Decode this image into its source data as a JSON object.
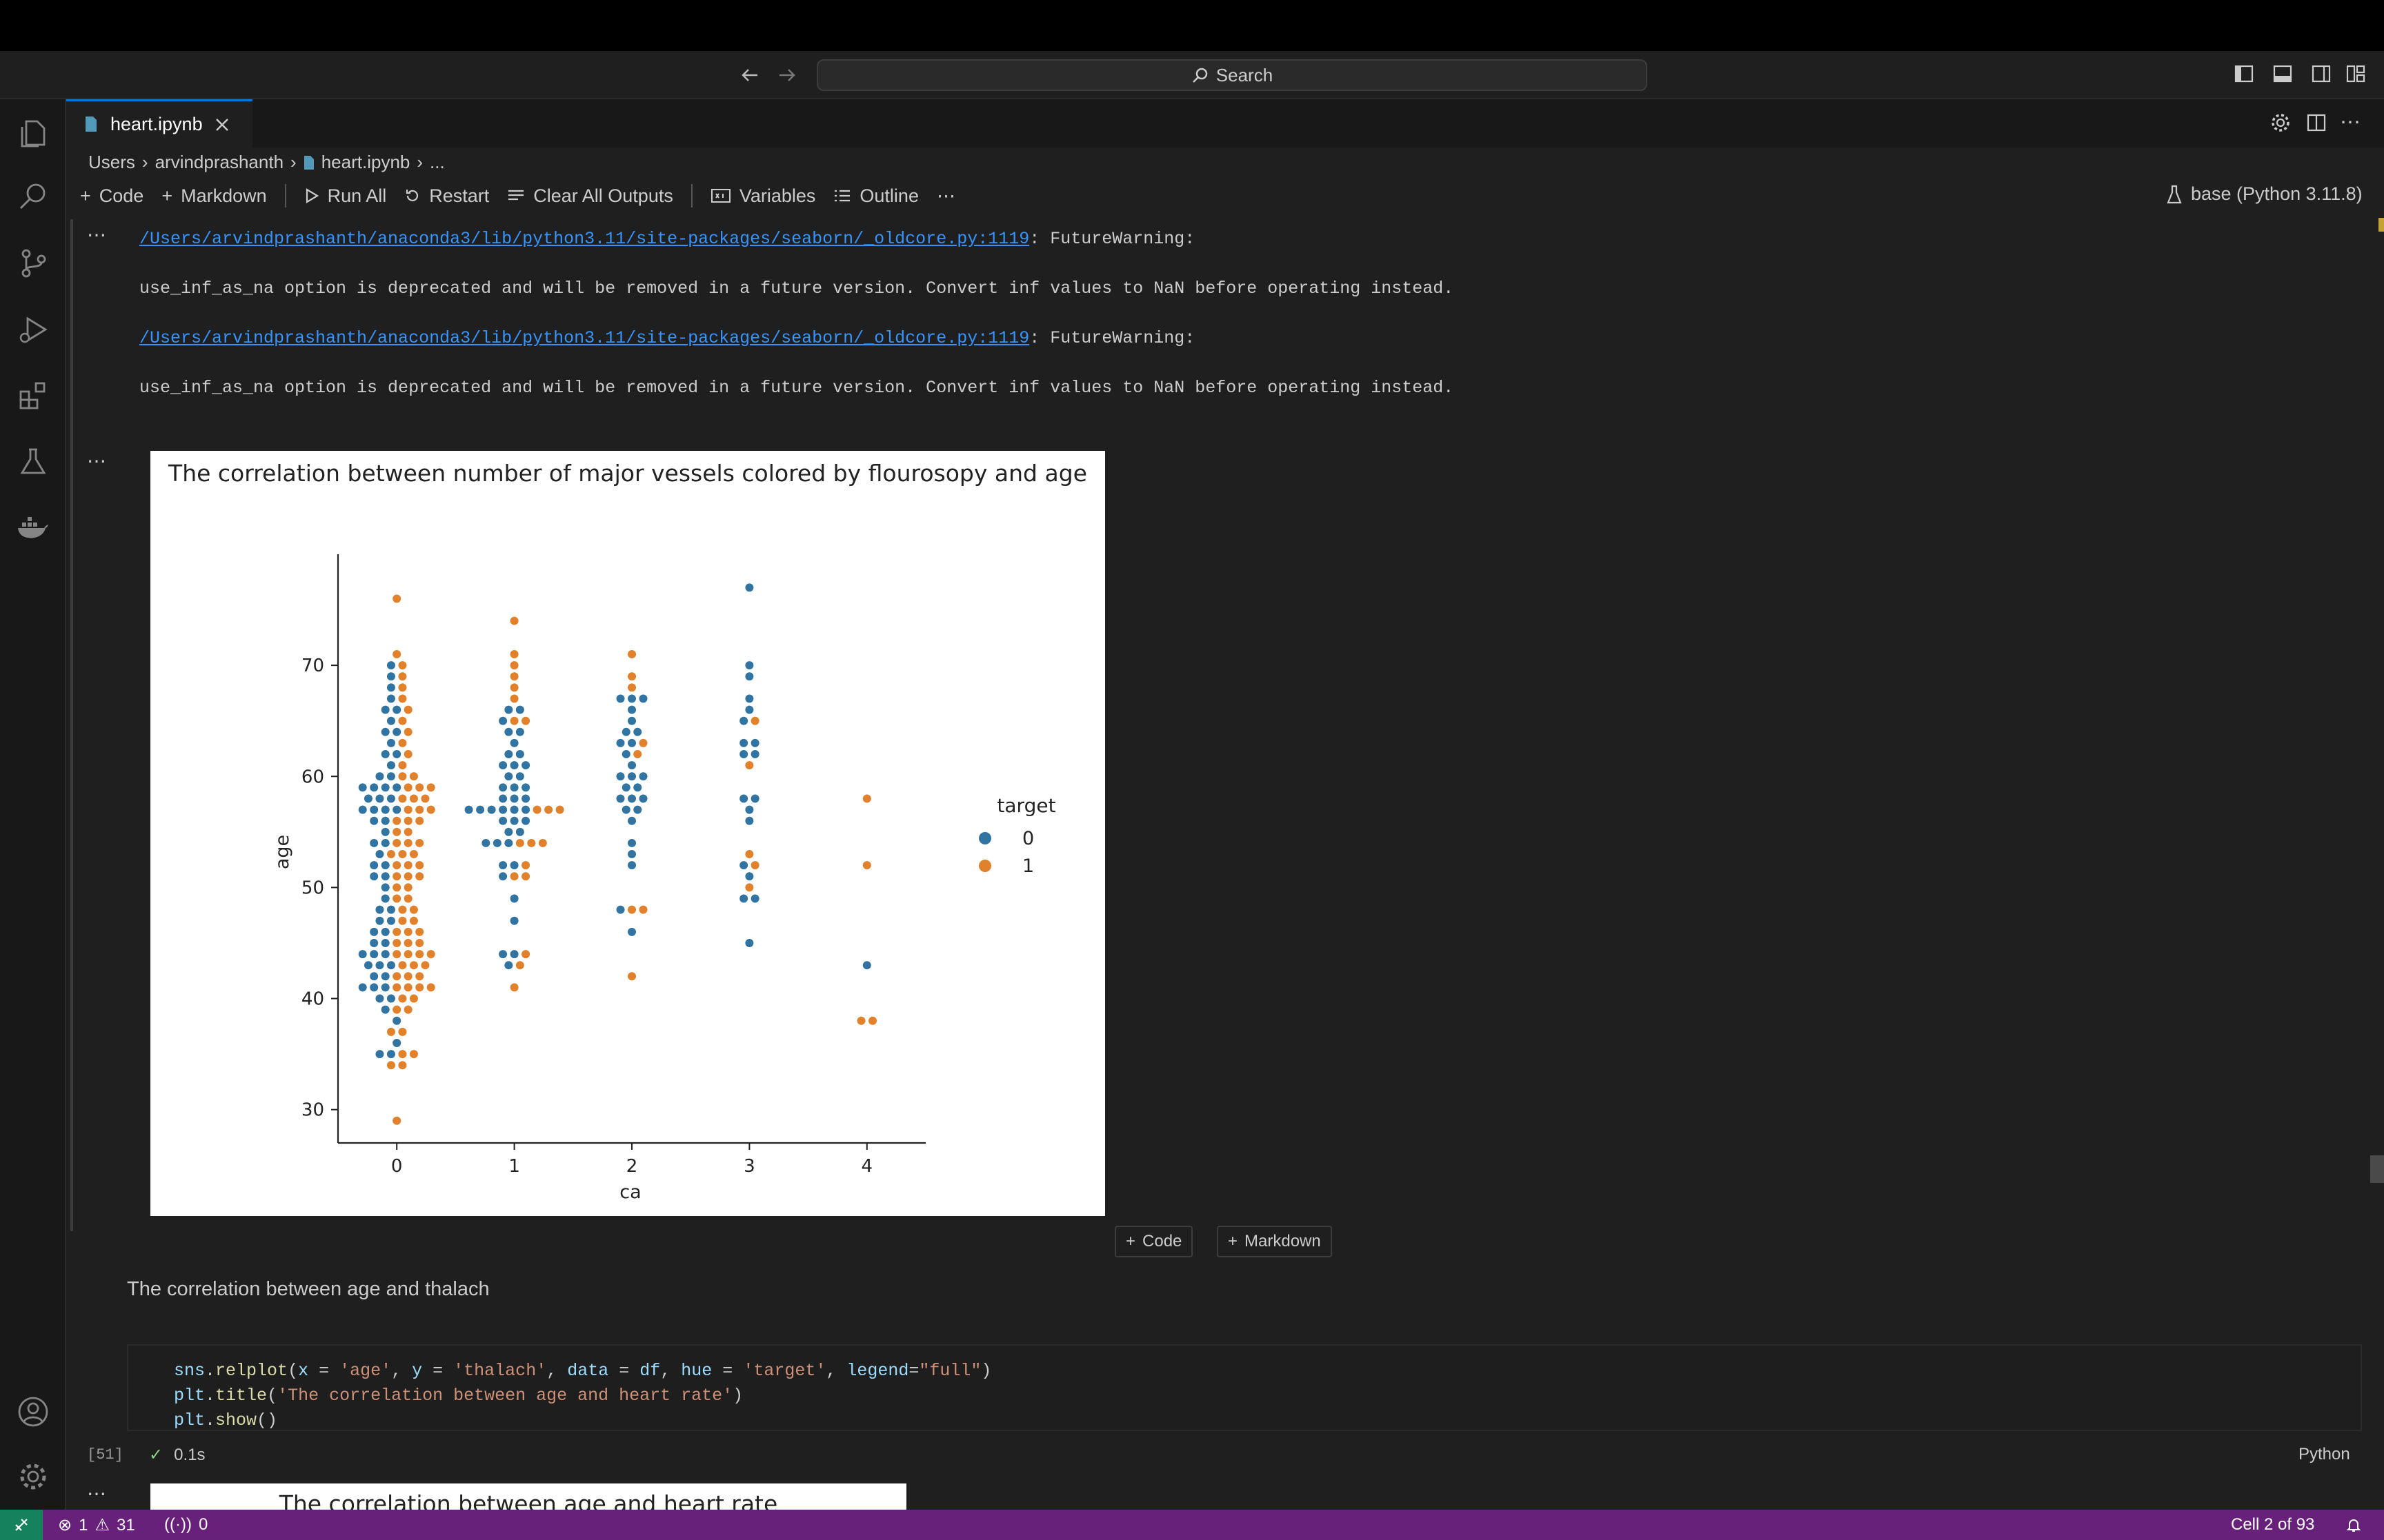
{
  "search": {
    "label": "Search"
  },
  "tab": {
    "title": "heart.ipynb"
  },
  "breadcrumb": {
    "user_root": "Users",
    "user": "arvindprashanth",
    "file": "heart.ipynb",
    "more": "..."
  },
  "toolbar": {
    "code": "Code",
    "markdown": "Markdown",
    "run_all": "Run All",
    "restart": "Restart",
    "clear_outputs": "Clear All Outputs",
    "variables": "Variables",
    "outline": "Outline",
    "more": "⋯",
    "kernel": "base (Python 3.11.8)"
  },
  "output1": {
    "ellipsis": "⋯",
    "warn1_path": "/Users/arvindprashanth/anaconda3/lib/python3.11/site-packages/seaborn/_oldcore.py:1119",
    "warn1_tail": ": FutureWarning:",
    "warn1_msg": "use_inf_as_na option is deprecated and will be removed in a future version. Convert inf values to NaN before operating instead.",
    "warn2_path": "/Users/arvindprashanth/anaconda3/lib/python3.11/site-packages/seaborn/_oldcore.py:1119",
    "warn2_tail": ": FutureWarning:",
    "warn2_msg": "use_inf_as_na option is deprecated and will be removed in a future version. Convert inf values to NaN before operating instead."
  },
  "output2": {
    "ellipsis": "⋯"
  },
  "chart_data": {
    "type": "scatter",
    "title": "The correlation between number of major vessels colored by flourosopy and age",
    "xlabel": "ca",
    "ylabel": "age",
    "categories": [
      "0",
      "1",
      "2",
      "3",
      "4"
    ],
    "yticks": [
      30,
      40,
      50,
      60,
      70
    ],
    "ylim": [
      27,
      80
    ],
    "legend_title": "target",
    "colors": {
      "0": "#3274a1",
      "1": "#e1812c"
    },
    "grid": false,
    "legend_position": "right",
    "series": [
      {
        "name": "0",
        "points": [
          [
            0,
            35
          ],
          [
            0,
            35
          ],
          [
            0,
            36
          ],
          [
            0,
            38
          ],
          [
            0,
            39
          ],
          [
            0,
            40
          ],
          [
            0,
            40
          ],
          [
            0,
            41
          ],
          [
            0,
            41
          ],
          [
            0,
            41
          ],
          [
            0,
            42
          ],
          [
            0,
            42
          ],
          [
            0,
            43
          ],
          [
            0,
            43
          ],
          [
            0,
            43
          ],
          [
            0,
            44
          ],
          [
            0,
            44
          ],
          [
            0,
            44
          ],
          [
            0,
            45
          ],
          [
            0,
            45
          ],
          [
            0,
            46
          ],
          [
            0,
            46
          ],
          [
            0,
            47
          ],
          [
            0,
            47
          ],
          [
            0,
            48
          ],
          [
            0,
            48
          ],
          [
            0,
            49
          ],
          [
            0,
            50
          ],
          [
            0,
            51
          ],
          [
            0,
            51
          ],
          [
            0,
            52
          ],
          [
            0,
            52
          ],
          [
            0,
            53
          ],
          [
            0,
            54
          ],
          [
            0,
            54
          ],
          [
            0,
            55
          ],
          [
            0,
            56
          ],
          [
            0,
            56
          ],
          [
            0,
            57
          ],
          [
            0,
            57
          ],
          [
            0,
            57
          ],
          [
            0,
            57
          ],
          [
            0,
            58
          ],
          [
            0,
            58
          ],
          [
            0,
            58
          ],
          [
            0,
            59
          ],
          [
            0,
            59
          ],
          [
            0,
            59
          ],
          [
            0,
            59
          ],
          [
            0,
            60
          ],
          [
            0,
            60
          ],
          [
            0,
            61
          ],
          [
            0,
            62
          ],
          [
            0,
            62
          ],
          [
            0,
            63
          ],
          [
            0,
            64
          ],
          [
            0,
            64
          ],
          [
            0,
            65
          ],
          [
            0,
            66
          ],
          [
            0,
            66
          ],
          [
            0,
            67
          ],
          [
            0,
            68
          ],
          [
            0,
            69
          ],
          [
            0,
            70
          ],
          [
            1,
            43
          ],
          [
            1,
            44
          ],
          [
            1,
            44
          ],
          [
            1,
            47
          ],
          [
            1,
            49
          ],
          [
            1,
            51
          ],
          [
            1,
            52
          ],
          [
            1,
            52
          ],
          [
            1,
            54
          ],
          [
            1,
            54
          ],
          [
            1,
            54
          ],
          [
            1,
            55
          ],
          [
            1,
            55
          ],
          [
            1,
            56
          ],
          [
            1,
            56
          ],
          [
            1,
            56
          ],
          [
            1,
            57
          ],
          [
            1,
            57
          ],
          [
            1,
            57
          ],
          [
            1,
            57
          ],
          [
            1,
            57
          ],
          [
            1,
            57
          ],
          [
            1,
            58
          ],
          [
            1,
            58
          ],
          [
            1,
            58
          ],
          [
            1,
            59
          ],
          [
            1,
            59
          ],
          [
            1,
            59
          ],
          [
            1,
            60
          ],
          [
            1,
            60
          ],
          [
            1,
            61
          ],
          [
            1,
            61
          ],
          [
            1,
            61
          ],
          [
            1,
            62
          ],
          [
            1,
            62
          ],
          [
            1,
            63
          ],
          [
            1,
            64
          ],
          [
            1,
            64
          ],
          [
            1,
            65
          ],
          [
            1,
            66
          ],
          [
            1,
            66
          ],
          [
            2,
            46
          ],
          [
            2,
            48
          ],
          [
            2,
            52
          ],
          [
            2,
            53
          ],
          [
            2,
            54
          ],
          [
            2,
            56
          ],
          [
            2,
            57
          ],
          [
            2,
            57
          ],
          [
            2,
            58
          ],
          [
            2,
            58
          ],
          [
            2,
            58
          ],
          [
            2,
            59
          ],
          [
            2,
            59
          ],
          [
            2,
            60
          ],
          [
            2,
            60
          ],
          [
            2,
            60
          ],
          [
            2,
            61
          ],
          [
            2,
            62
          ],
          [
            2,
            63
          ],
          [
            2,
            63
          ],
          [
            2,
            64
          ],
          [
            2,
            64
          ],
          [
            2,
            65
          ],
          [
            2,
            66
          ],
          [
            2,
            67
          ],
          [
            2,
            67
          ],
          [
            2,
            67
          ],
          [
            3,
            45
          ],
          [
            3,
            49
          ],
          [
            3,
            49
          ],
          [
            3,
            51
          ],
          [
            3,
            52
          ],
          [
            3,
            56
          ],
          [
            3,
            57
          ],
          [
            3,
            58
          ],
          [
            3,
            58
          ],
          [
            3,
            62
          ],
          [
            3,
            62
          ],
          [
            3,
            63
          ],
          [
            3,
            63
          ],
          [
            3,
            65
          ],
          [
            3,
            66
          ],
          [
            3,
            67
          ],
          [
            3,
            69
          ],
          [
            3,
            70
          ],
          [
            3,
            77
          ],
          [
            4,
            43
          ]
        ]
      },
      {
        "name": "1",
        "points": [
          [
            0,
            29
          ],
          [
            0,
            34
          ],
          [
            0,
            34
          ],
          [
            0,
            35
          ],
          [
            0,
            35
          ],
          [
            0,
            37
          ],
          [
            0,
            37
          ],
          [
            0,
            39
          ],
          [
            0,
            39
          ],
          [
            0,
            40
          ],
          [
            0,
            40
          ],
          [
            0,
            41
          ],
          [
            0,
            41
          ],
          [
            0,
            41
          ],
          [
            0,
            41
          ],
          [
            0,
            42
          ],
          [
            0,
            42
          ],
          [
            0,
            42
          ],
          [
            0,
            43
          ],
          [
            0,
            43
          ],
          [
            0,
            43
          ],
          [
            0,
            44
          ],
          [
            0,
            44
          ],
          [
            0,
            44
          ],
          [
            0,
            44
          ],
          [
            0,
            45
          ],
          [
            0,
            45
          ],
          [
            0,
            45
          ],
          [
            0,
            46
          ],
          [
            0,
            46
          ],
          [
            0,
            46
          ],
          [
            0,
            47
          ],
          [
            0,
            47
          ],
          [
            0,
            48
          ],
          [
            0,
            48
          ],
          [
            0,
            49
          ],
          [
            0,
            49
          ],
          [
            0,
            50
          ],
          [
            0,
            50
          ],
          [
            0,
            51
          ],
          [
            0,
            51
          ],
          [
            0,
            51
          ],
          [
            0,
            52
          ],
          [
            0,
            52
          ],
          [
            0,
            52
          ],
          [
            0,
            53
          ],
          [
            0,
            53
          ],
          [
            0,
            53
          ],
          [
            0,
            54
          ],
          [
            0,
            54
          ],
          [
            0,
            54
          ],
          [
            0,
            55
          ],
          [
            0,
            55
          ],
          [
            0,
            56
          ],
          [
            0,
            56
          ],
          [
            0,
            56
          ],
          [
            0,
            57
          ],
          [
            0,
            57
          ],
          [
            0,
            57
          ],
          [
            0,
            58
          ],
          [
            0,
            58
          ],
          [
            0,
            58
          ],
          [
            0,
            59
          ],
          [
            0,
            59
          ],
          [
            0,
            59
          ],
          [
            0,
            60
          ],
          [
            0,
            60
          ],
          [
            0,
            61
          ],
          [
            0,
            62
          ],
          [
            0,
            63
          ],
          [
            0,
            64
          ],
          [
            0,
            65
          ],
          [
            0,
            66
          ],
          [
            0,
            67
          ],
          [
            0,
            68
          ],
          [
            0,
            69
          ],
          [
            0,
            70
          ],
          [
            0,
            71
          ],
          [
            0,
            76
          ],
          [
            1,
            41
          ],
          [
            1,
            43
          ],
          [
            1,
            44
          ],
          [
            1,
            51
          ],
          [
            1,
            51
          ],
          [
            1,
            52
          ],
          [
            1,
            54
          ],
          [
            1,
            54
          ],
          [
            1,
            54
          ],
          [
            1,
            57
          ],
          [
            1,
            57
          ],
          [
            1,
            57
          ],
          [
            1,
            65
          ],
          [
            1,
            65
          ],
          [
            1,
            67
          ],
          [
            1,
            68
          ],
          [
            1,
            69
          ],
          [
            1,
            70
          ],
          [
            1,
            71
          ],
          [
            1,
            74
          ],
          [
            2,
            42
          ],
          [
            2,
            48
          ],
          [
            2,
            48
          ],
          [
            2,
            62
          ],
          [
            2,
            63
          ],
          [
            2,
            68
          ],
          [
            2,
            69
          ],
          [
            2,
            71
          ],
          [
            3,
            50
          ],
          [
            3,
            52
          ],
          [
            3,
            53
          ],
          [
            3,
            61
          ],
          [
            3,
            65
          ],
          [
            4,
            38
          ],
          [
            4,
            38
          ],
          [
            4,
            52
          ],
          [
            4,
            58
          ]
        ]
      }
    ]
  },
  "add_cell": {
    "code": "Code",
    "markdown": "Markdown"
  },
  "markdown_cell": {
    "text": "The correlation between age and thalach"
  },
  "code_cell": {
    "exec_count": "[51]",
    "status": "0.1s",
    "language": "Python",
    "lines": [
      "sns.relplot(x = 'age', y = 'thalach', data = df, hue = 'target', legend=\"full\")",
      "plt.title('The correlation between age and heart rate')",
      "plt.show()"
    ]
  },
  "plot2": {
    "title": "The correlation between age and heart rate"
  },
  "status": {
    "errors": "1",
    "warnings": "31",
    "ports": "0",
    "cell": "Cell 2 of 93"
  }
}
